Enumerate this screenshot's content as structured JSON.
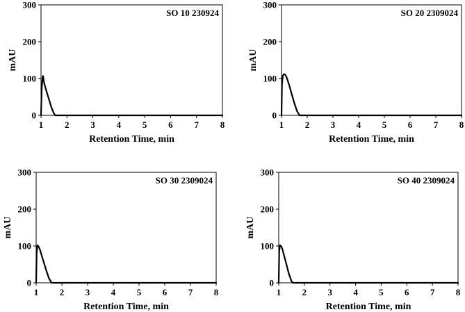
{
  "chart_data": [
    {
      "type": "line",
      "title": "SO 10 230924",
      "xlabel": "Retention Time, min",
      "ylabel": "mAU",
      "xlim": [
        1,
        8
      ],
      "ylim": [
        0,
        300
      ],
      "xticks": [
        "1",
        "2",
        "3",
        "4",
        "5",
        "6",
        "7",
        "8"
      ],
      "yticks": [
        "0",
        "100",
        "200",
        "300"
      ],
      "grid": false,
      "series": [
        {
          "x": [
            1.0,
            1.03,
            1.06,
            1.08,
            1.1,
            1.12,
            1.15,
            1.2,
            1.3,
            1.4,
            1.5,
            1.55,
            1.6,
            2.0,
            3.0,
            4.0,
            5.0,
            6.0,
            7.0,
            8.0
          ],
          "y": [
            0,
            75,
            104,
            107,
            97,
            88,
            80,
            68,
            45,
            22,
            5,
            0,
            0,
            0,
            0,
            0,
            0,
            0,
            0,
            0
          ]
        }
      ]
    },
    {
      "type": "line",
      "title": "SO 20 2309024",
      "xlabel": "Retention Time, min",
      "ylabel": "mAU",
      "xlim": [
        1,
        8
      ],
      "ylim": [
        0,
        300
      ],
      "xticks": [
        "1",
        "2",
        "3",
        "4",
        "5",
        "6",
        "7",
        "8"
      ],
      "yticks": [
        "0",
        "100",
        "200",
        "300"
      ],
      "grid": false,
      "series": [
        {
          "x": [
            1.0,
            1.02,
            1.05,
            1.1,
            1.15,
            1.2,
            1.3,
            1.4,
            1.5,
            1.6,
            1.7,
            1.75,
            2.0,
            3.0,
            4.0,
            5.0,
            6.0,
            7.0,
            8.0
          ],
          "y": [
            0,
            85,
            108,
            112,
            110,
            103,
            82,
            57,
            33,
            12,
            0,
            0,
            0,
            0,
            0,
            0,
            0,
            0,
            0
          ]
        }
      ]
    },
    {
      "type": "line",
      "title": "SO 30 2309024",
      "xlabel": "Retention Time, min",
      "ylabel": "mAU",
      "xlim": [
        1,
        8
      ],
      "ylim": [
        0,
        300
      ],
      "xticks": [
        "1",
        "2",
        "3",
        "4",
        "5",
        "6",
        "7",
        "8"
      ],
      "yticks": [
        "0",
        "100",
        "200",
        "300"
      ],
      "grid": false,
      "series": [
        {
          "x": [
            1.0,
            1.02,
            1.05,
            1.1,
            1.15,
            1.2,
            1.3,
            1.4,
            1.5,
            1.6,
            1.65,
            2.0,
            3.0,
            4.0,
            5.0,
            6.0,
            7.0,
            8.0
          ],
          "y": [
            0,
            80,
            102,
            98,
            90,
            78,
            55,
            32,
            12,
            0,
            0,
            0,
            0,
            0,
            0,
            0,
            0,
            0
          ]
        }
      ]
    },
    {
      "type": "line",
      "title": "SO 40 2309024",
      "xlabel": "Retention Time, min",
      "ylabel": "mAU",
      "xlim": [
        1,
        8
      ],
      "ylim": [
        0,
        300
      ],
      "xticks": [
        "1",
        "2",
        "3",
        "4",
        "5",
        "6",
        "7",
        "8"
      ],
      "yticks": [
        "0",
        "100",
        "200",
        "300"
      ],
      "grid": false,
      "series": [
        {
          "x": [
            1.0,
            1.02,
            1.05,
            1.1,
            1.15,
            1.2,
            1.3,
            1.4,
            1.5,
            1.55,
            2.0,
            3.0,
            4.0,
            5.0,
            6.0,
            7.0,
            8.0
          ],
          "y": [
            0,
            85,
            102,
            99,
            90,
            76,
            50,
            24,
            4,
            0,
            0,
            0,
            0,
            0,
            0,
            0,
            0
          ]
        }
      ]
    }
  ]
}
